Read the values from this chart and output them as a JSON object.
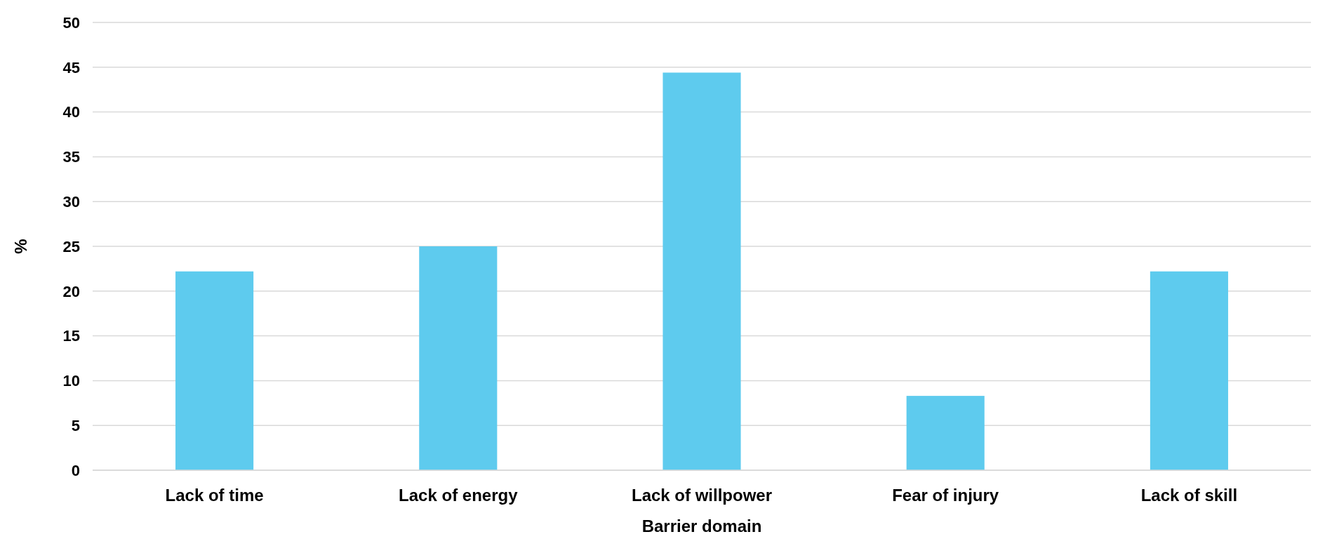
{
  "chart_data": {
    "type": "bar",
    "xlabel": "Barrier domain",
    "ylabel": "%",
    "categories": [
      "Lack of time",
      "Lack of energy",
      "Lack of willpower",
      "Fear of injury",
      "Lack of skill"
    ],
    "values": [
      22.2,
      25,
      44.4,
      8.3,
      22.2
    ],
    "color": "#5ecbee",
    "ylim": [
      0,
      50
    ],
    "yticks": [
      0,
      5,
      10,
      15,
      20,
      25,
      30,
      35,
      40,
      45,
      50
    ],
    "grid": "y"
  }
}
